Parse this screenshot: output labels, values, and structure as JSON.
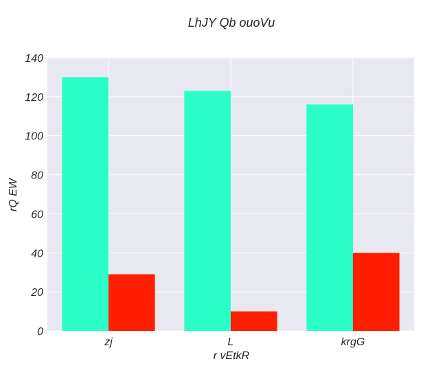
{
  "chart_data": {
    "type": "bar",
    "title": "LhJY Qb ouoVu",
    "xlabel": "r vEtkR",
    "ylabel": "rQ  EW",
    "categories": [
      "zj",
      "L",
      "krgG"
    ],
    "series": [
      {
        "values": [
          130,
          123,
          116
        ],
        "color": "#2affc8"
      },
      {
        "values": [
          29,
          10,
          40
        ],
        "color": "#ff1e00"
      }
    ],
    "ylim": [
      0,
      140
    ],
    "yticks": [
      0,
      20,
      40,
      60,
      80,
      100,
      120,
      140
    ],
    "grid": true,
    "background": "#e8e8f0"
  }
}
